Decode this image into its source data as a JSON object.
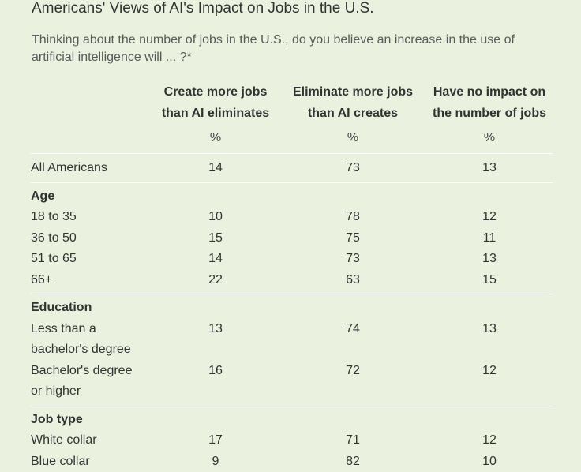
{
  "title": "Americans' Views of AI's Impact on Jobs in the U.S.",
  "question": "Thinking about the number of jobs in the U.S., do you believe an increase in the use of artificial intelligence will ... ?*",
  "columns": [
    {
      "line1": "Create more jobs",
      "line2": "than AI eliminates",
      "unit": "%"
    },
    {
      "line1": "Eliminate more jobs",
      "line2": "than AI creates",
      "unit": "%"
    },
    {
      "line1": "Have no impact on",
      "line2": "the number of jobs",
      "unit": "%"
    }
  ],
  "all": {
    "label": "All Americans",
    "values": [
      "14",
      "73",
      "13"
    ]
  },
  "age": {
    "heading": "Age",
    "rows": [
      {
        "label": "18 to 35",
        "values": [
          "10",
          "78",
          "12"
        ]
      },
      {
        "label": "36 to 50",
        "values": [
          "15",
          "75",
          "11"
        ]
      },
      {
        "label": "51 to 65",
        "values": [
          "14",
          "73",
          "13"
        ]
      },
      {
        "label": "66+",
        "values": [
          "22",
          "63",
          "15"
        ]
      }
    ]
  },
  "education": {
    "heading": "Education",
    "rows": [
      {
        "label_line1": "Less than a",
        "label_line2": "bachelor's degree",
        "values": [
          "13",
          "74",
          "13"
        ]
      },
      {
        "label_line1": "Bachelor's degree",
        "label_line2": "or higher",
        "values": [
          "16",
          "72",
          "12"
        ]
      }
    ]
  },
  "job_type": {
    "heading": "Job type",
    "rows": [
      {
        "label": "White collar",
        "values": [
          "17",
          "71",
          "12"
        ]
      },
      {
        "label": "Blue collar",
        "values": [
          "9",
          "82",
          "10"
        ]
      }
    ]
  }
}
